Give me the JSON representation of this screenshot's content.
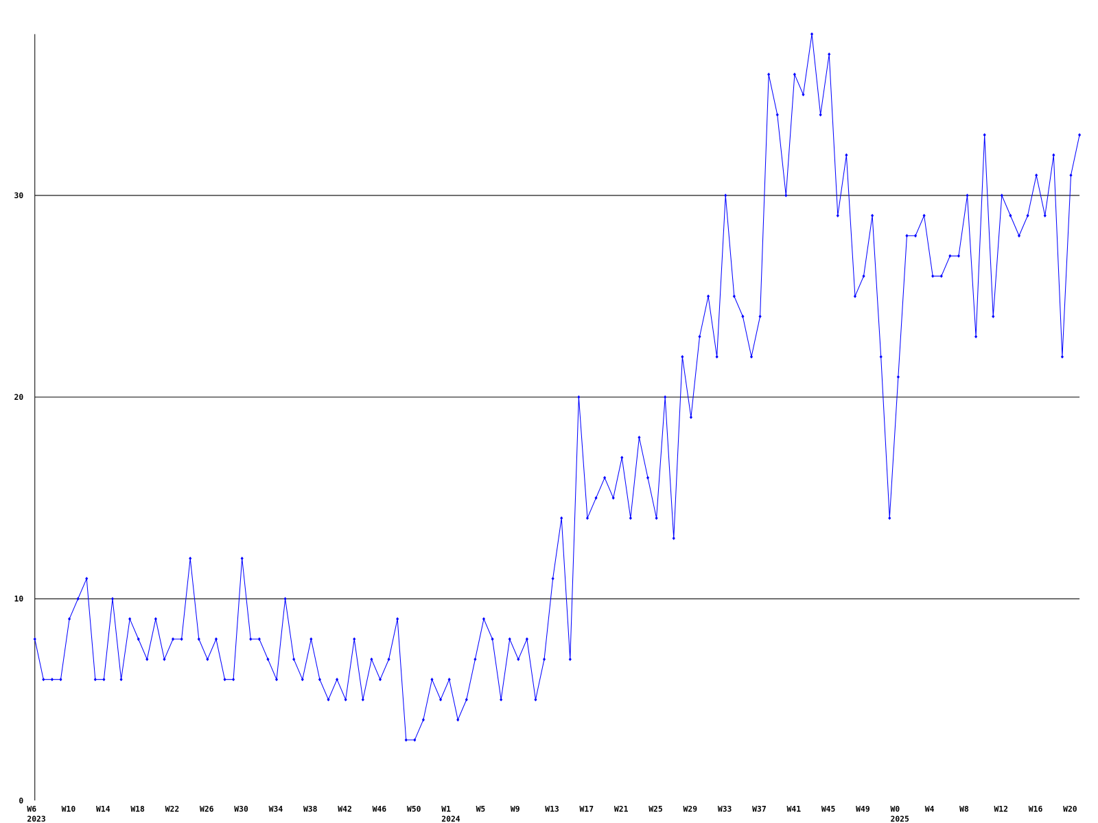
{
  "chart_data": {
    "type": "line",
    "categories": [
      "W6",
      null,
      null,
      null,
      "W10",
      null,
      null,
      null,
      "W14",
      null,
      null,
      null,
      "W18",
      null,
      null,
      null,
      "W22",
      null,
      null,
      null,
      "W26",
      null,
      null,
      null,
      "W30",
      null,
      null,
      null,
      "W34",
      null,
      null,
      null,
      "W38",
      null,
      null,
      null,
      "W42",
      null,
      null,
      null,
      "W46",
      null,
      null,
      null,
      "W50",
      null,
      null,
      null,
      "W1",
      null,
      null,
      null,
      "W5",
      null,
      null,
      null,
      "W9",
      null,
      null,
      null,
      "W13",
      null,
      null,
      null,
      "W17",
      null,
      null,
      null,
      "W21",
      null,
      null,
      null,
      "W25",
      null,
      null,
      null,
      "W29",
      null,
      null,
      null,
      "W33",
      null,
      null,
      null,
      "W37",
      null,
      null,
      null,
      "W41",
      null,
      null,
      null,
      "W45",
      null,
      null,
      null,
      "W49",
      null,
      null,
      null,
      "W0",
      null,
      null,
      null,
      "W4",
      null,
      null,
      null,
      "W8",
      null,
      null,
      null,
      "W12",
      null,
      null,
      null,
      "W16",
      null,
      null,
      null,
      "W20",
      null
    ],
    "category_years": [
      "2023",
      null,
      null,
      null,
      null,
      null,
      null,
      null,
      null,
      null,
      null,
      null,
      null,
      null,
      null,
      null,
      null,
      null,
      null,
      null,
      null,
      null,
      null,
      null,
      null,
      null,
      null,
      null,
      null,
      null,
      null,
      null,
      null,
      null,
      null,
      null,
      null,
      null,
      null,
      null,
      null,
      null,
      null,
      null,
      null,
      null,
      null,
      null,
      "2024",
      null,
      null,
      null,
      null,
      null,
      null,
      null,
      null,
      null,
      null,
      null,
      null,
      null,
      null,
      null,
      null,
      null,
      null,
      null,
      null,
      null,
      null,
      null,
      null,
      null,
      null,
      null,
      null,
      null,
      null,
      null,
      null,
      null,
      null,
      null,
      null,
      null,
      null,
      null,
      null,
      null,
      null,
      null,
      null,
      null,
      null,
      null,
      null,
      null,
      null,
      null,
      "2025",
      null,
      null,
      null,
      null,
      null,
      null,
      null,
      null,
      null,
      null,
      null,
      null,
      null,
      null,
      null,
      null,
      null,
      null,
      null,
      null,
      null
    ],
    "series": [
      {
        "color": "#0000ff",
        "values": [
          8,
          6,
          6,
          6,
          9,
          10,
          11,
          6,
          6,
          10,
          6,
          9,
          8,
          7,
          9,
          7,
          8,
          8,
          12,
          8,
          7,
          8,
          6,
          6,
          12,
          8,
          8,
          7,
          6,
          10,
          7,
          6,
          8,
          6,
          5,
          6,
          5,
          8,
          5,
          7,
          6,
          7,
          9,
          3,
          3,
          4,
          6,
          5,
          6,
          4,
          5,
          7,
          9,
          8,
          5,
          8,
          7,
          8,
          5,
          7,
          11,
          14,
          7,
          20,
          14,
          15,
          16,
          15,
          17,
          14,
          18,
          16,
          14,
          20,
          13,
          22,
          19,
          23,
          25,
          22,
          30,
          25,
          24,
          22,
          24,
          36,
          34,
          30,
          36,
          35,
          38,
          34,
          37,
          29,
          32,
          25,
          26,
          29,
          22,
          14,
          21,
          28,
          28,
          29,
          26,
          26,
          27,
          27,
          30,
          23,
          33,
          24,
          30,
          29,
          28,
          29,
          31,
          29,
          32,
          22,
          31,
          33
        ]
      }
    ],
    "ylim": [
      0,
      38
    ],
    "yticks": [
      0,
      10,
      20,
      30
    ],
    "grid": true
  }
}
